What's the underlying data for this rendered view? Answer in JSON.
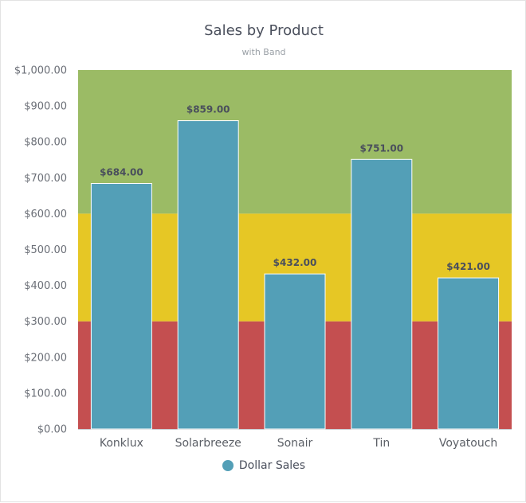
{
  "chart_data": {
    "type": "bar",
    "title": "Sales by Product",
    "subtitle": "with Band",
    "categories": [
      "Konklux",
      "Solarbreeze",
      "Sonair",
      "Tin",
      "Voyatouch"
    ],
    "series": [
      {
        "name": "Dollar Sales",
        "values": [
          684,
          859,
          432,
          751,
          421
        ],
        "color": "#539fb7"
      }
    ],
    "data_labels": [
      "$684.00",
      "$859.00",
      "$432.00",
      "$751.00",
      "$421.00"
    ],
    "ylim": [
      0,
      1000
    ],
    "yticks": [
      0,
      100,
      200,
      300,
      400,
      500,
      600,
      700,
      800,
      900,
      1000
    ],
    "ytick_labels": [
      "$0.00",
      "$100.00",
      "$200.00",
      "$300.00",
      "$400.00",
      "$500.00",
      "$600.00",
      "$700.00",
      "$800.00",
      "$900.00",
      "$1,000.00"
    ],
    "bands": [
      {
        "from": 0,
        "to": 300,
        "color": "#c44f50"
      },
      {
        "from": 300,
        "to": 600,
        "color": "#e6c725"
      },
      {
        "from": 600,
        "to": 1000,
        "color": "#9bbb65"
      }
    ],
    "xlabel": "",
    "ylabel": "",
    "legend_position": "bottom-center"
  }
}
